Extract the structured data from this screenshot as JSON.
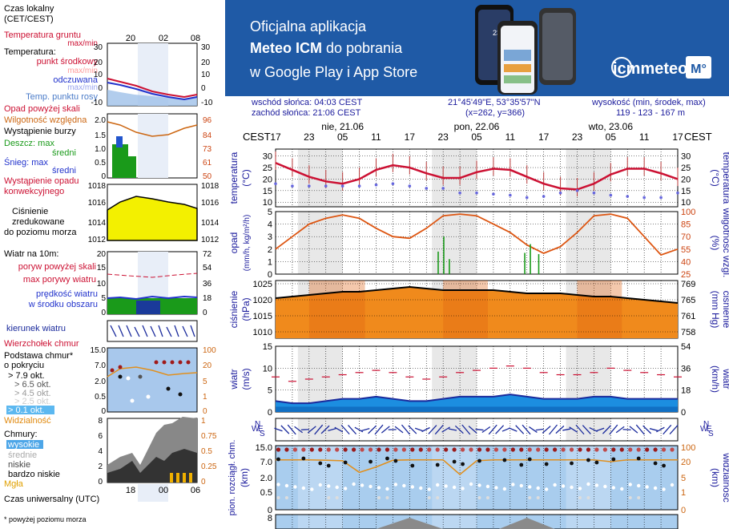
{
  "legend": {
    "time_zone": [
      "Czas lokalny",
      "(CET/CEST)"
    ],
    "hours_top": [
      "20",
      "02",
      "08"
    ],
    "hours_bottom": [
      "18",
      "00",
      "06"
    ],
    "temp": {
      "ground": [
        "Temperatura gruntu",
        "max/min"
      ],
      "heading": "Temperatura:",
      "mid": "punkt środkowy",
      "max_min": "max/min",
      "felt": "odczuwana",
      "dew": "Temp. punktu rosy",
      "ticks": [
        "30",
        "20",
        "10",
        "0",
        "-10"
      ]
    },
    "precip": {
      "above_scale": "Opad powyżej skali",
      "humidity": "Wilgotność względna",
      "storm": "Wystąpienie burzy",
      "rain_max": "Deszcz: max",
      "rain_mean": "średni",
      "snow_max": "Śnieg: max",
      "snow_mean": "średni",
      "occurrence": [
        "Wystąpienie opadu",
        "konwekcyjnego"
      ],
      "ticks_left": [
        "2.0",
        "1.5",
        "1.0",
        "0.5",
        "0"
      ],
      "ticks_right": [
        "96",
        "84",
        "73",
        "61",
        "50"
      ]
    },
    "pressure": {
      "label": [
        "Ciśnienie",
        "zredukowane",
        "do poziomu morza"
      ],
      "ticks": [
        "1018",
        "1016",
        "1014",
        "1012"
      ]
    },
    "wind": {
      "heading": "Wiatr na 10m:",
      "gust_above": "poryw powyżej skali",
      "gust_max": "max porywy wiatru",
      "speed": [
        "prędkość wiatru",
        "w środku obszaru"
      ],
      "ticks_left": [
        "20",
        "15",
        "10",
        "5",
        "0"
      ],
      "ticks_right": [
        "72",
        "54",
        "36",
        "18",
        "0"
      ]
    },
    "wind_dir": "kierunek wiatru",
    "clouds_base": {
      "top": "Wierzchołek chmur",
      "heading": [
        "Podstawa chmur*",
        "o pokryciu"
      ],
      "levels": [
        "> 7.9 okt.",
        "> 6.5 okt.",
        "> 4.5 okt.",
        "> 2.5 okt.",
        "> 0.1 okt."
      ],
      "visibility": "Widzialność",
      "ticks_left": [
        "15.0",
        "7.0",
        "2.0",
        "0.5",
        "0"
      ],
      "ticks_right": [
        "100",
        "20",
        "5",
        "1",
        "0"
      ]
    },
    "clouds": {
      "heading": "Chmury:",
      "high": "wysokie",
      "mid": "średnie",
      "low": "niskie",
      "very_low": "bardzo niskie",
      "fog": "Mgła",
      "ticks_left": [
        "8",
        "6",
        "4",
        "2",
        "0"
      ],
      "ticks_right": [
        "1",
        "0.75",
        "0.5",
        "0.25",
        "0"
      ]
    },
    "utc": "Czas uniwersalny (UTC)",
    "footnote": "* powyżej poziomu morza"
  },
  "banner": {
    "line1": "Oficjalna aplikacja",
    "line2_bold": "Meteo ICM",
    "line2_rest": " do pobrania",
    "line3": "w Google Play i App Store",
    "logo": "icmmeteo",
    "badge": "M°",
    "phone_temp": "23°"
  },
  "meta": {
    "sunrise": "wschód słońca: 04:03 CEST",
    "sunset": "zachód słońca: 21:06 CEST",
    "coords": "21°45'49\"E, 53°35'57\"N",
    "grid": "(x=262,  y=366)",
    "elev_label": "wysokość (min, środek, max)",
    "elev_values": "119 - 123 - 167 m"
  },
  "chart_data": {
    "type": "line",
    "tz_label": "CEST",
    "days": [
      "nie, 21.06",
      "pon, 22.06",
      "wto, 23.06"
    ],
    "hour_labels": [
      "17",
      "23",
      "05",
      "11",
      "17",
      "23",
      "05",
      "11",
      "17",
      "23",
      "05",
      "11",
      "17"
    ],
    "x": [
      0,
      3,
      6,
      9,
      12,
      15,
      18,
      21,
      24,
      27,
      30,
      33,
      36,
      39,
      42,
      45,
      48,
      51,
      54,
      57,
      60,
      63,
      66,
      69,
      72
    ],
    "panels": {
      "temperature": {
        "ylabel_left": [
          "temperatura",
          "(°C)"
        ],
        "ylabel_right": [
          "(°C)",
          "temperatura"
        ],
        "ticks": [
          "30",
          "25",
          "20",
          "15",
          "10"
        ],
        "ylim": [
          8,
          33
        ],
        "series": [
          {
            "name": "punkt środkowy",
            "color": "#cc1133",
            "values": [
              27,
              24,
              21,
              19,
              18,
              20,
              24,
              26,
              25,
              22.5,
              20.5,
              20.5,
              23,
              24.5,
              24,
              21,
              18,
              16,
              15.5,
              18,
              22,
              24.5,
              24.5,
              22.5,
              20
            ]
          },
          {
            "name": "Temp. punktu rosy",
            "color": "#6666dd",
            "values": [
              18,
              17,
              17,
              17,
              17,
              17,
              17.5,
              18,
              17,
              16,
              16,
              14,
              14,
              13.5,
              13,
              12,
              12.5,
              14,
              15,
              14,
              13,
              12.5,
              12,
              12,
              14
            ]
          }
        ]
      },
      "precipitation": {
        "ylabel_left": [
          "opad",
          "(mm/h, kg/m²/h)"
        ],
        "ylabel_right": [
          "(%)",
          "wilgotność wzgl."
        ],
        "ticks_left": [
          "5",
          "4",
          "3",
          "2",
          "1",
          "0"
        ],
        "ticks_right": [
          "100",
          "85",
          "70",
          "55",
          "40",
          "25"
        ],
        "ylim": [
          0,
          5
        ],
        "humidity": [
          55,
          70,
          85,
          92,
          96,
          92,
          80,
          70,
          68,
          80,
          95,
          97,
          95,
          85,
          75,
          60,
          50,
          58,
          75,
          95,
          97,
          92,
          70,
          48,
          55
        ],
        "rain": [
          {
            "x": 29,
            "mm": 1.8
          },
          {
            "x": 30,
            "mm": 3.0
          },
          {
            "x": 31,
            "mm": 1.2
          },
          {
            "x": 44.5,
            "mm": 1.7
          },
          {
            "x": 45.5,
            "mm": 2.4
          },
          {
            "x": 47,
            "mm": 1.6
          }
        ]
      },
      "pressure": {
        "ylabel_left": [
          "ciśnienie",
          "(hPa)"
        ],
        "ylabel_right": [
          "(mm Hg)",
          "ciśnienie"
        ],
        "ticks_left": [
          "1025",
          "1020",
          "1015",
          "1010"
        ],
        "ticks_right": [
          "769",
          "765",
          "761",
          "758"
        ],
        "ylim": [
          1008,
          1026
        ],
        "values": [
          1020.5,
          1021,
          1021.5,
          1022,
          1022.5,
          1022.5,
          1023,
          1023.5,
          1024,
          1023.5,
          1023,
          1023,
          1023,
          1023,
          1022.5,
          1022,
          1022,
          1022,
          1021.5,
          1021,
          1021,
          1020.5,
          1020,
          1019.5,
          1019
        ]
      },
      "wind": {
        "ylabel_left": [
          "wiatr",
          "(m/s)"
        ],
        "ylabel_right": [
          "(km/h)",
          "wiatr"
        ],
        "ticks_left": [
          "15",
          "10",
          "5",
          "0"
        ],
        "ticks_right": [
          "54",
          "36",
          "18",
          "0"
        ],
        "ylim": [
          0,
          15
        ],
        "speed": [
          2.5,
          2.0,
          2.0,
          2.5,
          3.0,
          3.0,
          3.5,
          3.0,
          2.5,
          2.5,
          3.0,
          3.5,
          3.5,
          3.5,
          4.0,
          3.5,
          3.0,
          3.0,
          3.0,
          3.5,
          3.5,
          3.0,
          3.0,
          3.0,
          3.0
        ],
        "gust_max": [
          8,
          7,
          7.5,
          8,
          8.5,
          9,
          9.5,
          9,
          8,
          7.5,
          8,
          9,
          9.5,
          10,
          10.5,
          10,
          9,
          8.5,
          8.5,
          9,
          10,
          9.5,
          9,
          8.5,
          8
        ]
      },
      "wind_direction": {
        "ylabel": "N S W E"
      },
      "cloud_base": {
        "ylabel_left": [
          "pion. rozciągł. chm.",
          "(km)"
        ],
        "ylabel_right": [
          "(km)",
          "widzialność"
        ],
        "ticks_left": [
          "15.0",
          "7.0",
          "2.0",
          "0.5",
          "0"
        ],
        "ticks_right": [
          "100",
          "20",
          "5",
          "1",
          "0"
        ],
        "visibility_km": [
          30,
          30,
          30,
          28,
          25,
          10,
          15,
          28,
          30,
          30,
          30,
          8,
          25,
          30,
          30,
          30,
          30,
          30,
          30,
          30,
          20,
          30,
          30,
          30,
          30
        ]
      },
      "clouds": {
        "ticks_left": [
          "8"
        ]
      }
    }
  }
}
